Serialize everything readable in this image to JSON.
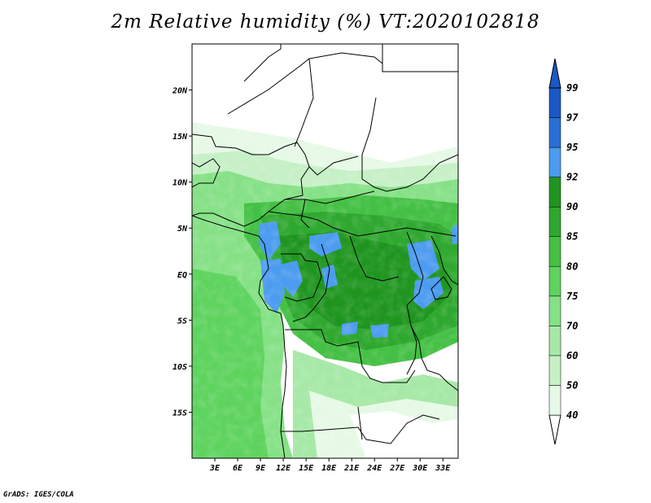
{
  "title": "2m Relative humidity (%) VT:2020102818",
  "credit": "GrADS: IGES/COLA",
  "map": {
    "lat_range": [
      -20,
      25
    ],
    "lon_range": [
      0,
      35
    ],
    "lat_ticks": [
      {
        "label": "20N",
        "value": 20
      },
      {
        "label": "15N",
        "value": 15
      },
      {
        "label": "10N",
        "value": 10
      },
      {
        "label": "5N",
        "value": 5
      },
      {
        "label": "EQ",
        "value": 0
      },
      {
        "label": "5S",
        "value": -5
      },
      {
        "label": "10S",
        "value": -10
      },
      {
        "label": "15S",
        "value": -15
      }
    ],
    "lon_ticks": [
      {
        "label": "3E",
        "value": 3
      },
      {
        "label": "6E",
        "value": 6
      },
      {
        "label": "9E",
        "value": 9
      },
      {
        "label": "12E",
        "value": 12
      },
      {
        "label": "15E",
        "value": 15
      },
      {
        "label": "18E",
        "value": 18
      },
      {
        "label": "21E",
        "value": 21
      },
      {
        "label": "24E",
        "value": 24
      },
      {
        "label": "27E",
        "value": 27
      },
      {
        "label": "30E",
        "value": 30
      },
      {
        "label": "33E",
        "value": 33
      }
    ]
  },
  "colorbar": {
    "levels": [
      {
        "label": "40",
        "color": "#ffffff"
      },
      {
        "label": "50",
        "color": "#e6f9e6"
      },
      {
        "label": "60",
        "color": "#c6f0c6"
      },
      {
        "label": "70",
        "color": "#a6e8a6"
      },
      {
        "label": "75",
        "color": "#86e186"
      },
      {
        "label": "80",
        "color": "#5ed35e"
      },
      {
        "label": "85",
        "color": "#44c044"
      },
      {
        "label": "90",
        "color": "#2ea82e"
      },
      {
        "label": "92",
        "color": "#1f951f"
      },
      {
        "label": "95",
        "color": "#4b9bf0"
      },
      {
        "label": "97",
        "color": "#2a6fd8"
      },
      {
        "label": "99",
        "color": "#1a58c8"
      }
    ],
    "top_arrow_color": "#1a58c8",
    "bottom_arrow_color": "#ffffff"
  }
}
